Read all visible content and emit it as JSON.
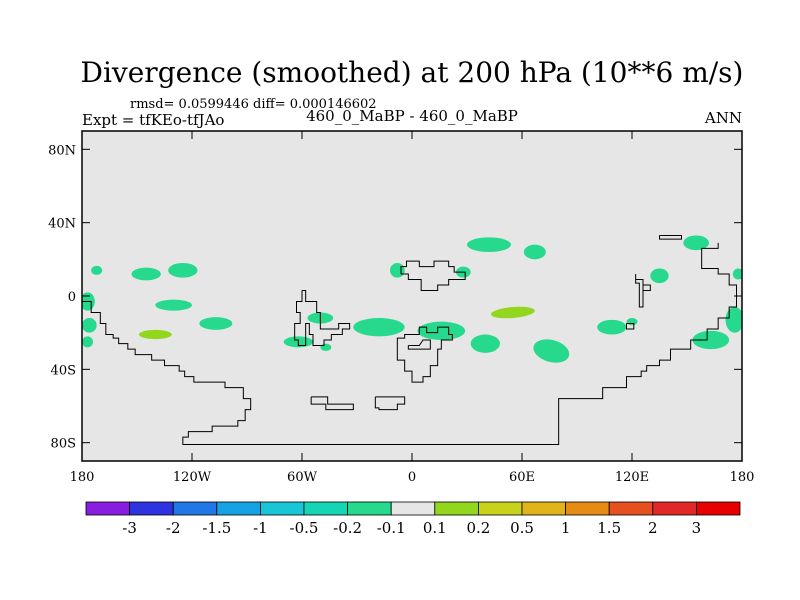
{
  "chart_data": {
    "type": "heatmap",
    "title": "Divergence (smoothed) at 200 hPa (10**6 m/s)",
    "stats": "rmsd= 0.0599446 diff= 0.000146602",
    "left_label": "Expt = tfKEo-tfJAo",
    "center_label": "460_0_MaBP - 460_0_MaBP",
    "right_label": "ANN",
    "xlim": [
      -180,
      180
    ],
    "ylim": [
      -90,
      90
    ],
    "x_ticks": [
      {
        "value": -180,
        "label": "180"
      },
      {
        "value": -120,
        "label": "120W"
      },
      {
        "value": -60,
        "label": "60W"
      },
      {
        "value": 0,
        "label": "0"
      },
      {
        "value": 60,
        "label": "60E"
      },
      {
        "value": 120,
        "label": "120E"
      },
      {
        "value": 180,
        "label": "180"
      }
    ],
    "y_ticks": [
      {
        "value": 80,
        "label": "80N"
      },
      {
        "value": 40,
        "label": "40N"
      },
      {
        "value": 0,
        "label": "0"
      },
      {
        "value": -40,
        "label": "40S"
      },
      {
        "value": -80,
        "label": "80S"
      }
    ],
    "colorbar": {
      "labels": [
        "-3",
        "-2",
        "-1.5",
        "-1",
        "-0.5",
        "-0.2",
        "-0.1",
        "0.1",
        "0.2",
        "0.5",
        "1",
        "1.5",
        "2",
        "3"
      ],
      "colors": [
        "#8a1ee0",
        "#2e32e0",
        "#1f78e6",
        "#15a3e6",
        "#18c6d8",
        "#15d6b4",
        "#26d98c",
        "#e6e6e6",
        "#93d61e",
        "#c8d21a",
        "#e0b41a",
        "#e68c14",
        "#e6501e",
        "#e02828",
        "#e80000"
      ]
    },
    "background_color": "#e6e6e6",
    "features": [
      {
        "lon": -154,
        "lat": 27,
        "rlon": 7,
        "rlat": 4,
        "rot": -25,
        "cls": 7
      },
      {
        "lon": -145,
        "lat": 12,
        "rlon": 8,
        "rlat": 3.5,
        "rot": 0,
        "cls": 6
      },
      {
        "lon": -140,
        "lat": -21,
        "rlon": 16,
        "rlat": 5,
        "rot": 0,
        "cls": 7
      },
      {
        "lon": -140,
        "lat": -21,
        "rlon": 9,
        "rlat": 2.5,
        "rot": 0,
        "cls": 8
      },
      {
        "lon": -125,
        "lat": 14,
        "rlon": 8,
        "rlat": 4,
        "rot": 0,
        "cls": 6
      },
      {
        "lon": -130,
        "lat": -5,
        "rlon": 10,
        "rlat": 3,
        "rot": 0,
        "cls": 6
      },
      {
        "lon": -107,
        "lat": -15,
        "rlon": 9,
        "rlat": 3.5,
        "rot": 0,
        "cls": 6
      },
      {
        "lon": -97,
        "lat": 28,
        "rlon": 10,
        "rlat": 5,
        "rot": -15,
        "cls": 7
      },
      {
        "lon": -74,
        "lat": 19,
        "rlon": 14,
        "rlat": 8,
        "rot": -15,
        "cls": 7
      },
      {
        "lon": -172,
        "lat": 14,
        "rlon": 3,
        "rlat": 2.5,
        "rot": 0,
        "cls": 6
      },
      {
        "lon": -177,
        "lat": -3,
        "rlon": 4,
        "rlat": 5,
        "rot": 0,
        "cls": 6
      },
      {
        "lon": -176,
        "lat": -16,
        "rlon": 4,
        "rlat": 4,
        "rot": 0,
        "cls": 6
      },
      {
        "lon": -177,
        "lat": -25,
        "rlon": 3,
        "rlat": 3,
        "rot": 0,
        "cls": 6
      },
      {
        "lon": -62,
        "lat": -25,
        "rlon": 8,
        "rlat": 3,
        "rot": 0,
        "cls": 6
      },
      {
        "lon": -50,
        "lat": -12,
        "rlon": 7,
        "rlat": 3,
        "rot": 0,
        "cls": 6
      },
      {
        "lon": -60,
        "lat": -12,
        "rlon": 2,
        "rlat": 2,
        "rot": 0,
        "cls": 7
      },
      {
        "lon": -47,
        "lat": -28,
        "rlon": 3,
        "rlat": 2,
        "rot": 0,
        "cls": 6
      },
      {
        "lon": -45,
        "lat": 20,
        "rlon": 6,
        "rlat": 8,
        "rot": 0,
        "cls": 7
      },
      {
        "lon": -29,
        "lat": 16,
        "rlon": 5,
        "rlat": 4,
        "rot": 0,
        "cls": 7
      },
      {
        "lon": -18,
        "lat": -17,
        "rlon": 14,
        "rlat": 5,
        "rot": 0,
        "cls": 6
      },
      {
        "lon": -8,
        "lat": 14,
        "rlon": 4,
        "rlat": 4,
        "rot": 0,
        "cls": 6
      },
      {
        "lon": 9,
        "lat": 9,
        "rlon": 6,
        "rlat": 3,
        "rot": 0,
        "cls": 7
      },
      {
        "lon": 16,
        "lat": -19,
        "rlon": 13,
        "rlat": 5,
        "rot": 0,
        "cls": 6
      },
      {
        "lon": 28,
        "lat": 13,
        "rlon": 4,
        "rlat": 3,
        "rot": 0,
        "cls": 6
      },
      {
        "lon": 42,
        "lat": 28,
        "rlon": 12,
        "rlat": 4,
        "rot": 0,
        "cls": 6
      },
      {
        "lon": 67,
        "lat": 24,
        "rlon": 6,
        "rlat": 4,
        "rot": 0,
        "cls": 6
      },
      {
        "lon": 56,
        "lat": -8,
        "rlon": 23,
        "rlat": 9,
        "rot": -5,
        "cls": 7
      },
      {
        "lon": 55,
        "lat": -9,
        "rlon": 12,
        "rlat": 3,
        "rot": -5,
        "cls": 8
      },
      {
        "lon": 40,
        "lat": -26,
        "rlon": 8,
        "rlat": 5,
        "rot": 0,
        "cls": 6
      },
      {
        "lon": 76,
        "lat": -30,
        "rlon": 10,
        "rlat": 6,
        "rot": 15,
        "cls": 6
      },
      {
        "lon": 112,
        "lat": 28,
        "rlon": 9,
        "rlat": 6,
        "rot": -10,
        "cls": 7
      },
      {
        "lon": 109,
        "lat": -17,
        "rlon": 8,
        "rlat": 4,
        "rot": 0,
        "cls": 6
      },
      {
        "lon": 135,
        "lat": 11,
        "rlon": 5,
        "rlat": 4,
        "rot": 0,
        "cls": 6
      },
      {
        "lon": 155,
        "lat": 29,
        "rlon": 7,
        "rlat": 4,
        "rot": 0,
        "cls": 6
      },
      {
        "lon": 150,
        "lat": 10,
        "rlon": 4,
        "rlat": 3,
        "rot": 0,
        "cls": 7
      },
      {
        "lon": 153,
        "lat": -17,
        "rlon": 6,
        "rlat": 3,
        "rot": 0,
        "cls": 7
      },
      {
        "lon": 163,
        "lat": -24,
        "rlon": 10,
        "rlat": 5,
        "rot": 0,
        "cls": 6
      },
      {
        "lon": 176,
        "lat": -13,
        "rlon": 5,
        "rlat": 7,
        "rot": 0,
        "cls": 6
      },
      {
        "lon": 178,
        "lat": 12,
        "rlon": 3,
        "rlat": 3,
        "rot": 0,
        "cls": 6
      },
      {
        "lon": 120,
        "lat": -14,
        "rlon": 3,
        "rlat": 2,
        "rot": 0,
        "cls": 6
      }
    ],
    "coastlines": [
      [
        [
          -180,
          -3
        ],
        [
          -175,
          -3
        ],
        [
          -175,
          -9
        ],
        [
          -170,
          -9
        ],
        [
          -170,
          -15
        ],
        [
          -167,
          -15
        ],
        [
          -167,
          -21
        ],
        [
          -163,
          -21
        ],
        [
          -163,
          -23
        ],
        [
          -160,
          -23
        ],
        [
          -160,
          -26
        ],
        [
          -155,
          -26
        ],
        [
          -155,
          -29
        ],
        [
          -151,
          -29
        ],
        [
          -151,
          -32
        ],
        [
          -142,
          -32
        ],
        [
          -142,
          -35
        ],
        [
          -135,
          -35
        ],
        [
          -135,
          -38
        ],
        [
          -127,
          -38
        ],
        [
          -127,
          -41
        ],
        [
          -124,
          -41
        ],
        [
          -124,
          -44
        ],
        [
          -119,
          -44
        ],
        [
          -119,
          -47
        ],
        [
          -102,
          -47
        ],
        [
          -102,
          -50
        ],
        [
          -92,
          -50
        ],
        [
          -92,
          -56
        ],
        [
          -88,
          -56
        ],
        [
          -88,
          -62
        ],
        [
          -91,
          -62
        ],
        [
          -91,
          -68
        ],
        [
          -95,
          -68
        ],
        [
          -95,
          -71
        ],
        [
          -109,
          -71
        ],
        [
          -109,
          -74
        ],
        [
          -122,
          -74
        ],
        [
          -122,
          -77
        ],
        [
          -125,
          -77
        ],
        [
          -125,
          -81
        ],
        [
          80,
          -81
        ],
        [
          80,
          -56
        ],
        [
          104,
          -56
        ],
        [
          104,
          -50
        ],
        [
          117,
          -50
        ],
        [
          117,
          -44
        ],
        [
          125,
          -44
        ],
        [
          125,
          -41
        ],
        [
          128,
          -41
        ],
        [
          128,
          -38
        ],
        [
          135,
          -38
        ],
        [
          135,
          -35
        ],
        [
          141,
          -35
        ],
        [
          141,
          -29
        ],
        [
          152,
          -29
        ],
        [
          152,
          -24
        ],
        [
          161,
          -24
        ],
        [
          161,
          -18
        ],
        [
          167,
          -18
        ],
        [
          167,
          -12
        ],
        [
          173,
          -12
        ],
        [
          173,
          -6
        ],
        [
          177,
          -6
        ],
        [
          177,
          6
        ],
        [
          173,
          6
        ],
        [
          173,
          12
        ],
        [
          167,
          12
        ],
        [
          167,
          15
        ],
        [
          158,
          15
        ],
        [
          158,
          26
        ],
        [
          167,
          26
        ],
        [
          167,
          29
        ]
      ],
      [
        [
          -60,
          3
        ],
        [
          -58,
          3
        ],
        [
          -58,
          -3
        ],
        [
          -52,
          -3
        ],
        [
          -52,
          -9
        ],
        [
          -50,
          -9
        ],
        [
          -50,
          -18
        ],
        [
          -40,
          -18
        ],
        [
          -40,
          -15
        ],
        [
          -34,
          -15
        ],
        [
          -34,
          -18
        ],
        [
          -38,
          -18
        ],
        [
          -38,
          -21
        ],
        [
          -44,
          -21
        ],
        [
          -44,
          -24
        ],
        [
          -48,
          -24
        ],
        [
          -48,
          -27
        ],
        [
          -54,
          -27
        ],
        [
          -54,
          -21
        ],
        [
          -56,
          -21
        ],
        [
          -56,
          -15
        ],
        [
          -58,
          -15
        ],
        [
          -58,
          -27
        ],
        [
          -62,
          -27
        ],
        [
          -62,
          -24
        ],
        [
          -64,
          -24
        ],
        [
          -64,
          -15
        ],
        [
          -61,
          -15
        ],
        [
          -61,
          -9
        ],
        [
          -63,
          -9
        ],
        [
          -63,
          -3
        ],
        [
          -60,
          -3
        ],
        [
          -60,
          3
        ]
      ],
      [
        [
          -6,
          12
        ],
        [
          -6,
          16
        ],
        [
          -3,
          16
        ],
        [
          -3,
          19
        ],
        [
          4,
          19
        ],
        [
          4,
          16
        ],
        [
          12,
          16
        ],
        [
          12,
          19
        ],
        [
          20,
          19
        ],
        [
          20,
          16
        ],
        [
          23,
          16
        ],
        [
          23,
          13
        ],
        [
          29,
          13
        ],
        [
          29,
          9
        ],
        [
          20,
          9
        ],
        [
          20,
          6
        ],
        [
          14,
          6
        ],
        [
          14,
          3
        ],
        [
          5,
          3
        ],
        [
          5,
          9
        ],
        [
          -2,
          9
        ],
        [
          -2,
          12
        ],
        [
          -6,
          12
        ]
      ],
      [
        [
          -8,
          -29
        ],
        [
          -8,
          -23
        ],
        [
          -4,
          -23
        ],
        [
          -4,
          -21
        ],
        [
          4,
          -21
        ],
        [
          4,
          -17
        ],
        [
          8,
          -17
        ],
        [
          8,
          -20
        ],
        [
          14,
          -20
        ],
        [
          14,
          -17
        ],
        [
          20,
          -17
        ],
        [
          20,
          -21
        ],
        [
          22,
          -21
        ],
        [
          22,
          -24
        ],
        [
          16,
          -24
        ],
        [
          16,
          -29
        ],
        [
          14,
          -29
        ],
        [
          14,
          -38
        ],
        [
          10,
          -38
        ],
        [
          10,
          -44
        ],
        [
          6,
          -44
        ],
        [
          6,
          -47
        ],
        [
          0,
          -47
        ],
        [
          0,
          -41
        ],
        [
          -4,
          -41
        ],
        [
          -4,
          -35
        ],
        [
          -8,
          -35
        ],
        [
          -8,
          -29
        ]
      ],
      [
        [
          -2,
          -27
        ],
        [
          4,
          -27
        ],
        [
          6,
          -24
        ],
        [
          10,
          -24
        ],
        [
          10,
          -29
        ],
        [
          -2,
          -29
        ],
        [
          -2,
          -27
        ]
      ],
      [
        [
          -55,
          -55
        ],
        [
          -55,
          -59
        ],
        [
          -47,
          -59
        ],
        [
          -47,
          -62
        ],
        [
          -32,
          -62
        ],
        [
          -32,
          -59
        ],
        [
          -46,
          -59
        ],
        [
          -46,
          -55
        ],
        [
          -55,
          -55
        ]
      ],
      [
        [
          -20,
          -55
        ],
        [
          -20,
          -61
        ],
        [
          -18,
          -61
        ],
        [
          -18,
          -62
        ],
        [
          -8,
          -62
        ],
        [
          -8,
          -59
        ],
        [
          -4,
          -59
        ],
        [
          -4,
          -55
        ],
        [
          -20,
          -55
        ]
      ],
      [
        [
          135,
          33
        ],
        [
          135,
          31
        ],
        [
          147,
          31
        ],
        [
          147,
          33
        ],
        [
          135,
          33
        ]
      ],
      [
        [
          122,
          12
        ],
        [
          122,
          7
        ],
        [
          124,
          7
        ],
        [
          124,
          -6
        ],
        [
          126,
          -6
        ],
        [
          126,
          9
        ],
        [
          122,
          9
        ]
      ],
      [
        [
          126,
          3
        ],
        [
          130,
          3
        ],
        [
          130,
          6
        ],
        [
          126,
          6
        ]
      ],
      [
        [
          117,
          -15
        ],
        [
          117,
          -18
        ],
        [
          121,
          -18
        ],
        [
          121,
          -15
        ],
        [
          117,
          -15
        ]
      ]
    ]
  }
}
